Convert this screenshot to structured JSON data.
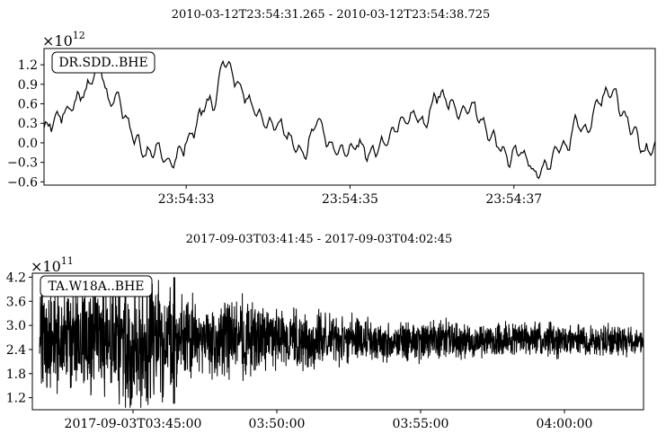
{
  "chart_data": [
    {
      "type": "line",
      "title": "2010-03-12T23:54:31.265 - 2010-03-12T23:54:38.725",
      "trace_label": "DR.SDD..BHE",
      "multiplier": "×10",
      "exponent": "12",
      "xlim": [
        31.265,
        38.725
      ],
      "ylim": [
        -0.65,
        1.45
      ],
      "yticks": [
        1.2,
        0.9,
        0.6,
        0.3,
        0.0,
        -0.3,
        -0.6
      ],
      "ytick_labels": [
        "1.2",
        "0.9",
        "0.6",
        "0.3",
        "0.0",
        "−0.3",
        "−0.6"
      ],
      "xticks": [
        33,
        35,
        37
      ],
      "xtick_labels": [
        "23:54:33",
        "23:54:35",
        "23:54:37"
      ],
      "x": [
        31.27,
        31.4,
        31.6,
        31.8,
        31.95,
        32.05,
        32.15,
        32.3,
        32.5,
        32.65,
        32.8,
        32.95,
        33.1,
        33.25,
        33.35,
        33.45,
        33.55,
        33.7,
        33.85,
        34.0,
        34.15,
        34.3,
        34.45,
        34.6,
        34.75,
        34.95,
        35.1,
        35.25,
        35.45,
        35.6,
        35.8,
        35.9,
        36.05,
        36.2,
        36.35,
        36.5,
        36.65,
        36.8,
        36.95,
        37.0,
        37.15,
        37.25,
        37.45,
        37.55,
        37.65,
        37.75,
        37.9,
        38.0,
        38.2,
        38.35,
        38.5,
        38.6,
        38.72
      ],
      "y": [
        0.2,
        0.35,
        0.55,
        0.85,
        1.25,
        0.6,
        0.75,
        0.25,
        -0.2,
        -0.05,
        -0.35,
        -0.1,
        0.2,
        0.65,
        0.55,
        1.3,
        1.1,
        0.75,
        0.5,
        0.25,
        0.3,
        0.0,
        -0.2,
        0.4,
        -0.05,
        -0.15,
        0.0,
        -0.2,
        0.05,
        0.3,
        0.45,
        0.25,
        0.75,
        0.65,
        0.45,
        0.6,
        0.2,
        0.0,
        -0.3,
        -0.1,
        -0.2,
        -0.5,
        -0.3,
        0.0,
        -0.1,
        0.35,
        0.15,
        0.6,
        0.8,
        0.4,
        0.1,
        -0.15,
        -0.05
      ]
    },
    {
      "type": "line",
      "title": "2017-09-03T03:41:45 - 2017-09-03T04:02:45",
      "trace_label": "TA.W18A..BHE",
      "multiplier": "×10",
      "exponent": "11",
      "xlim": [
        -15,
        1260
      ],
      "ylim": [
        0.9,
        4.3
      ],
      "yticks": [
        4.2,
        3.6,
        3.0,
        2.4,
        1.8,
        1.2
      ],
      "ytick_labels": [
        "4.2",
        "3.6",
        "3.0",
        "2.4",
        "1.8",
        "1.2"
      ],
      "xticks": [
        195,
        495,
        795,
        1095
      ],
      "xtick_labels": [
        "2017-09-03T03:45:00",
        "03:50:00",
        "03:55:00",
        "04:00:00"
      ],
      "x": [
        0,
        60,
        120,
        180,
        240,
        300,
        360,
        420,
        480,
        540,
        600,
        660,
        720,
        780,
        840,
        900,
        960,
        1020,
        1080,
        1140,
        1200,
        1260
      ],
      "y": [
        2.6,
        2.6,
        2.65,
        2.5,
        2.6,
        2.7,
        2.6,
        2.7,
        2.7,
        2.6,
        2.65,
        2.7,
        2.6,
        2.6,
        2.7,
        2.6,
        2.6,
        2.7,
        2.6,
        2.6,
        2.65,
        2.6
      ],
      "envelope": [
        1.5,
        1.6,
        1.9,
        1.8,
        2.0,
        1.3,
        1.0,
        1.3,
        0.9,
        0.9,
        0.8,
        0.7,
        0.6,
        0.6,
        0.55,
        0.5,
        0.55,
        0.5,
        0.5,
        0.45,
        0.45,
        0.4
      ],
      "peak_x": 281,
      "peak_high": 4.2,
      "peak_low": 1.05
    }
  ]
}
